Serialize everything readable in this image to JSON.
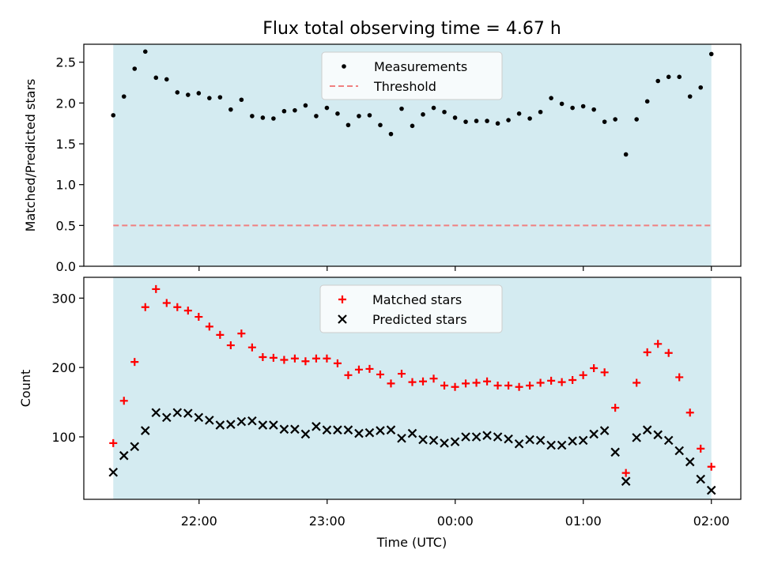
{
  "chart_data": {
    "title": "Flux total observing time = 4.67 h",
    "xlabel": "Time (UTC)",
    "x_ticks": [
      "22:00",
      "23:00",
      "00:00",
      "01:00",
      "02:00"
    ],
    "x_tick_hours": [
      22.0,
      23.0,
      24.0,
      25.0,
      26.0
    ],
    "xlim": [
      21.1,
      26.23
    ],
    "colors": {
      "shade": "#d4ebf1",
      "measurement": "#000000",
      "threshold": "#f08080",
      "matched": "#ff0000",
      "predicted": "#000000"
    },
    "panels": [
      {
        "type": "scatter",
        "ylabel": "Matched/Predicted stars",
        "ylim": [
          0,
          2.72
        ],
        "y_ticks": [
          0.0,
          0.5,
          1.0,
          1.5,
          2.0,
          2.5
        ],
        "y_tick_labels": [
          "0.0",
          "0.5",
          "1.0",
          "1.5",
          "2.0",
          "2.5"
        ],
        "shaded_x": [
          21.33,
          26.0
        ],
        "threshold": 0.5,
        "legend": {
          "placement": "upper-center",
          "entries": [
            "Measurements",
            "Threshold"
          ]
        },
        "series": [
          {
            "name": "Measurements",
            "marker": "dot",
            "y": [
              1.85,
              2.08,
              2.42,
              2.63,
              2.31,
              2.29,
              2.13,
              2.1,
              2.12,
              2.06,
              2.07,
              1.92,
              2.04,
              1.84,
              1.82,
              1.81,
              1.9,
              1.91,
              1.97,
              1.84,
              1.94,
              1.87,
              1.73,
              1.84,
              1.85,
              1.73,
              1.62,
              1.93,
              1.72,
              1.86,
              1.94,
              1.89,
              1.82,
              1.77,
              1.78,
              1.78,
              1.75,
              1.79,
              1.87,
              1.81,
              1.89,
              2.06,
              1.99,
              1.94,
              1.96,
              1.92,
              1.77,
              1.8,
              1.37,
              1.8,
              2.02,
              2.27,
              2.32,
              2.32,
              2.08,
              2.19,
              2.6
            ]
          }
        ]
      },
      {
        "type": "scatter",
        "ylabel": "Count",
        "ylim": [
          10,
          330
        ],
        "y_ticks": [
          100,
          200,
          300
        ],
        "y_tick_labels": [
          "100",
          "200",
          "300"
        ],
        "shaded_x": [
          21.33,
          26.0
        ],
        "legend": {
          "placement": "upper-center",
          "entries": [
            "Matched stars",
            "Predicted stars"
          ]
        },
        "series": [
          {
            "name": "Matched stars",
            "marker": "plus",
            "y": [
              91,
              152,
              208,
              287,
              313,
              293,
              287,
              282,
              273,
              259,
              247,
              232,
              249,
              229,
              215,
              214,
              211,
              213,
              209,
              213,
              213,
              206,
              189,
              197,
              198,
              190,
              177,
              191,
              179,
              180,
              184,
              174,
              172,
              177,
              178,
              180,
              174,
              174,
              172,
              174,
              178,
              181,
              179,
              182,
              189,
              199,
              193,
              142,
              48,
              178,
              222,
              234,
              221,
              186,
              135,
              83,
              57
            ]
          },
          {
            "name": "Predicted stars",
            "marker": "x",
            "y": [
              49,
              73,
              86,
              109,
              135,
              128,
              135,
              134,
              128,
              124,
              117,
              118,
              122,
              123,
              117,
              117,
              111,
              111,
              104,
              115,
              110,
              110,
              110,
              105,
              106,
              109,
              110,
              98,
              105,
              96,
              95,
              91,
              93,
              100,
              100,
              102,
              100,
              97,
              90,
              96,
              95,
              88,
              88,
              94,
              95,
              104,
              109,
              78,
              36,
              99,
              110,
              103,
              95,
              80,
              64,
              39,
              23
            ]
          }
        ]
      }
    ]
  }
}
